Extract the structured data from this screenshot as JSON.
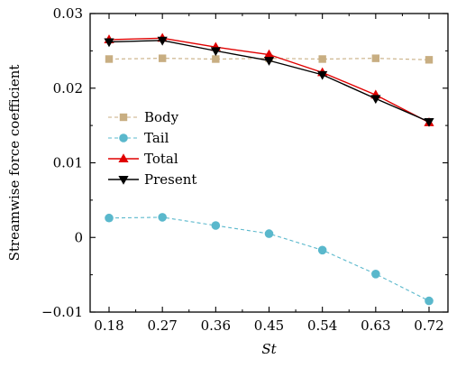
{
  "chart_data": {
    "type": "line",
    "xlabel": "St",
    "ylabel": "Streamwise force coefficient",
    "x": [
      0.18,
      0.27,
      0.36,
      0.45,
      0.54,
      0.63,
      0.72
    ],
    "xtick_labels": [
      "0.18",
      "0.27",
      "0.36",
      "0.45",
      "0.54",
      "0.63",
      "0.72"
    ],
    "ylim": [
      -0.01,
      0.03
    ],
    "yticks": [
      -0.01,
      0,
      0.01,
      0.02,
      0.03
    ],
    "ytick_labels": [
      "−0.01",
      "0",
      "0.01",
      "0.02",
      "0.03"
    ],
    "grid": false,
    "legend_position": "center-left",
    "series": [
      {
        "name": "Body",
        "color": "#c8ae82",
        "line": "dashed",
        "marker": "square",
        "values": [
          0.0239,
          0.024,
          0.0239,
          0.024,
          0.0239,
          0.024,
          0.0238
        ]
      },
      {
        "name": "Tail",
        "color": "#5ab8cc",
        "line": "dashed",
        "marker": "circle",
        "values": [
          0.0026,
          0.0027,
          0.0016,
          0.0005,
          -0.0017,
          -0.0049,
          -0.0085
        ]
      },
      {
        "name": "Total",
        "color": "#e00000",
        "line": "solid",
        "marker": "triangle-up",
        "values": [
          0.0265,
          0.0267,
          0.0255,
          0.0245,
          0.0221,
          0.0191,
          0.0154
        ]
      },
      {
        "name": "Present",
        "color": "#000000",
        "line": "solid",
        "marker": "triangle-down",
        "values": [
          0.0262,
          0.0264,
          0.025,
          0.0237,
          0.0218,
          0.0186,
          0.0155
        ]
      }
    ]
  }
}
